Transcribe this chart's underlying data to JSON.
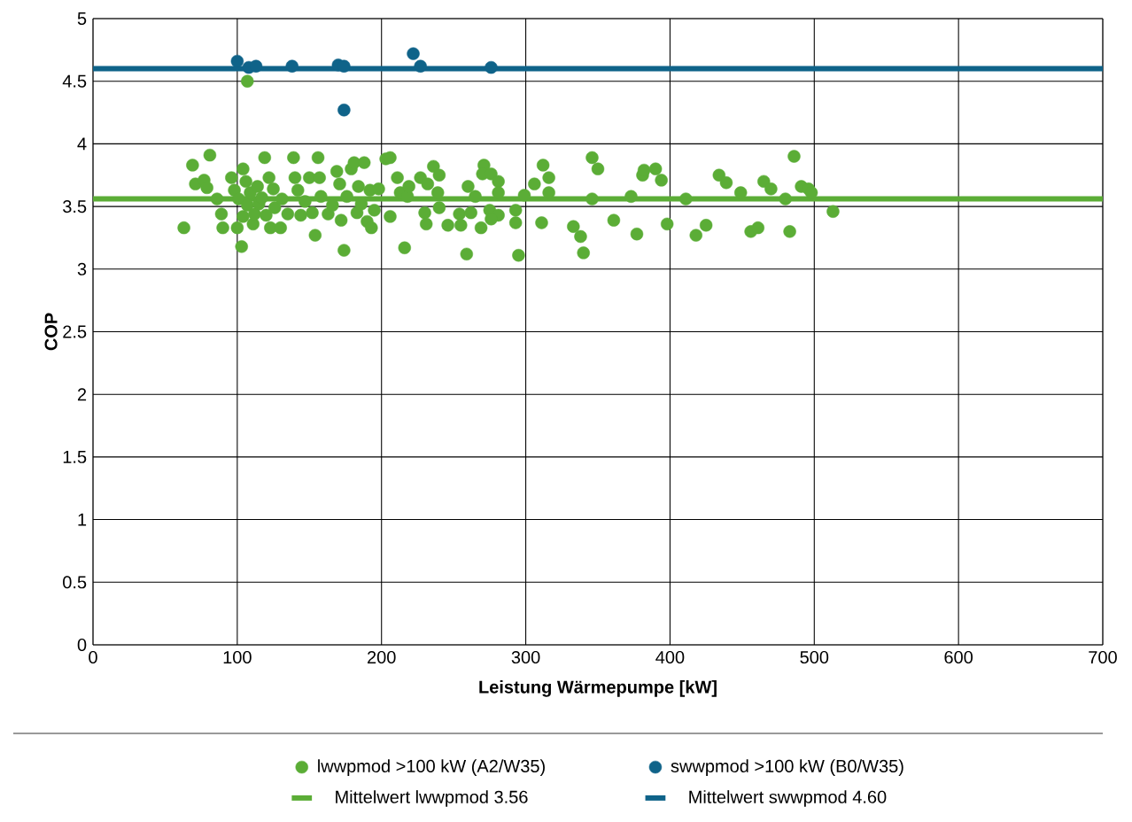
{
  "chart_data": {
    "type": "scatter",
    "xlabel": "Leistung Wärmepumpe [kW]",
    "ylabel": "COP",
    "xlim": [
      0,
      700
    ],
    "ylim": [
      0,
      5
    ],
    "xticks": [
      0,
      100,
      200,
      300,
      400,
      500,
      600,
      700
    ],
    "yticks": [
      0,
      0.5,
      1,
      1.5,
      2,
      2.5,
      3,
      3.5,
      4,
      4.5,
      5
    ],
    "grid": true,
    "legend": "bottom",
    "marker": "circle",
    "series": [
      {
        "name": "lwwpmod >100 kW (A2/W35)",
        "color": "#5bad36",
        "x": [
          63,
          69,
          71,
          81,
          77,
          79,
          86,
          89,
          90,
          96,
          98,
          101,
          100,
          103,
          104,
          104,
          106,
          107,
          109,
          111,
          112,
          114,
          115,
          117,
          119,
          120,
          122,
          123,
          125,
          126,
          130,
          131,
          135,
          139,
          140,
          142,
          144,
          147,
          150,
          152,
          154,
          156,
          157,
          158,
          163,
          166,
          169,
          171,
          172,
          174,
          176,
          179,
          181,
          183,
          184,
          186,
          188,
          190,
          192,
          193,
          195,
          198,
          203,
          206,
          206,
          211,
          213,
          216,
          218,
          219,
          227,
          230,
          232,
          231,
          236,
          239,
          240,
          240,
          246,
          254,
          255,
          259,
          262,
          260,
          265,
          271,
          270,
          276,
          281,
          281,
          275,
          281,
          276,
          269,
          293,
          293,
          295,
          299,
          306,
          312,
          316,
          316,
          311,
          333,
          338,
          340,
          346,
          346,
          350,
          361,
          373,
          377,
          381,
          382,
          390,
          394,
          398,
          411,
          418,
          425,
          434,
          439,
          449,
          456,
          461,
          465,
          470,
          480,
          483,
          486,
          491,
          496,
          498,
          513,
          107
        ],
        "values": [
          3.33,
          3.83,
          3.68,
          3.91,
          3.71,
          3.65,
          3.56,
          3.44,
          3.33,
          3.73,
          3.63,
          3.56,
          3.33,
          3.18,
          3.8,
          3.42,
          3.7,
          3.51,
          3.61,
          3.36,
          3.44,
          3.66,
          3.52,
          3.57,
          3.89,
          3.43,
          3.73,
          3.33,
          3.64,
          3.49,
          3.33,
          3.56,
          3.44,
          3.89,
          3.73,
          3.63,
          3.43,
          3.54,
          3.73,
          3.45,
          3.27,
          3.89,
          3.73,
          3.58,
          3.44,
          3.51,
          3.78,
          3.68,
          3.39,
          3.15,
          3.58,
          3.8,
          3.85,
          3.45,
          3.66,
          3.52,
          3.85,
          3.38,
          3.63,
          3.33,
          3.47,
          3.64,
          3.88,
          3.89,
          3.42,
          3.73,
          3.61,
          3.17,
          3.58,
          3.66,
          3.73,
          3.45,
          3.68,
          3.36,
          3.82,
          3.61,
          3.49,
          3.75,
          3.35,
          3.44,
          3.35,
          3.12,
          3.45,
          3.66,
          3.58,
          3.83,
          3.76,
          3.76,
          3.7,
          3.61,
          3.47,
          3.43,
          3.4,
          3.33,
          3.47,
          3.37,
          3.11,
          3.59,
          3.68,
          3.83,
          3.73,
          3.61,
          3.37,
          3.34,
          3.26,
          3.13,
          3.56,
          3.89,
          3.8,
          3.39,
          3.58,
          3.28,
          3.75,
          3.79,
          3.8,
          3.71,
          3.36,
          3.56,
          3.27,
          3.35,
          3.75,
          3.69,
          3.61,
          3.3,
          3.33,
          3.7,
          3.64,
          3.56,
          3.3,
          3.9,
          3.66,
          3.64,
          3.61,
          3.46,
          4.5
        ]
      },
      {
        "name": "swwpmod >100 kW (B0/W35)",
        "color": "#0f6389",
        "x": [
          100,
          108,
          113,
          138,
          170,
          174,
          174,
          222,
          227,
          276
        ],
        "values": [
          4.66,
          4.61,
          4.62,
          4.62,
          4.63,
          4.62,
          4.27,
          4.72,
          4.62,
          4.61
        ]
      },
      {
        "name": "Mittelwert lwwpmod 3.56",
        "type": "line",
        "color": "#5bad36",
        "marker": "none",
        "x": [
          0,
          700
        ],
        "values": [
          3.56,
          3.56
        ]
      },
      {
        "name": "Mittelwert swwpmod 4.60",
        "type": "line",
        "color": "#0f6389",
        "marker": "none",
        "x": [
          0,
          700
        ],
        "values": [
          4.6,
          4.6
        ]
      }
    ]
  }
}
